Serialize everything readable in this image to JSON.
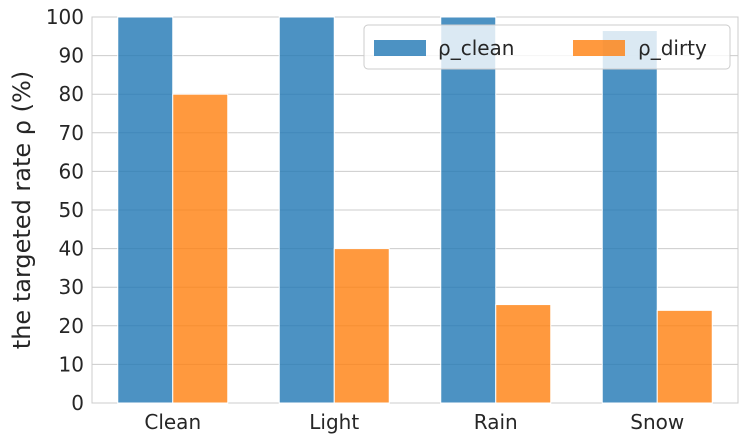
{
  "chart_data": {
    "type": "bar",
    "title": "",
    "xlabel": "",
    "ylabel": "the targeted rate ρ (%)",
    "categories": [
      "Clean",
      "Light",
      "Rain",
      "Snow"
    ],
    "series": [
      {
        "name": "ρ_clean",
        "values": [
          100,
          100,
          100,
          96.5
        ]
      },
      {
        "name": "ρ_dirty",
        "values": [
          80,
          40,
          25.5,
          24
        ]
      }
    ],
    "ylim": [
      0,
      100
    ],
    "yticks": [
      "0",
      "10",
      "20",
      "30",
      "40",
      "50",
      "60",
      "70",
      "80",
      "90",
      "100"
    ],
    "grid": true,
    "legend": "top-right",
    "colors": [
      "#1f77b4",
      "#ff7f0e"
    ]
  }
}
